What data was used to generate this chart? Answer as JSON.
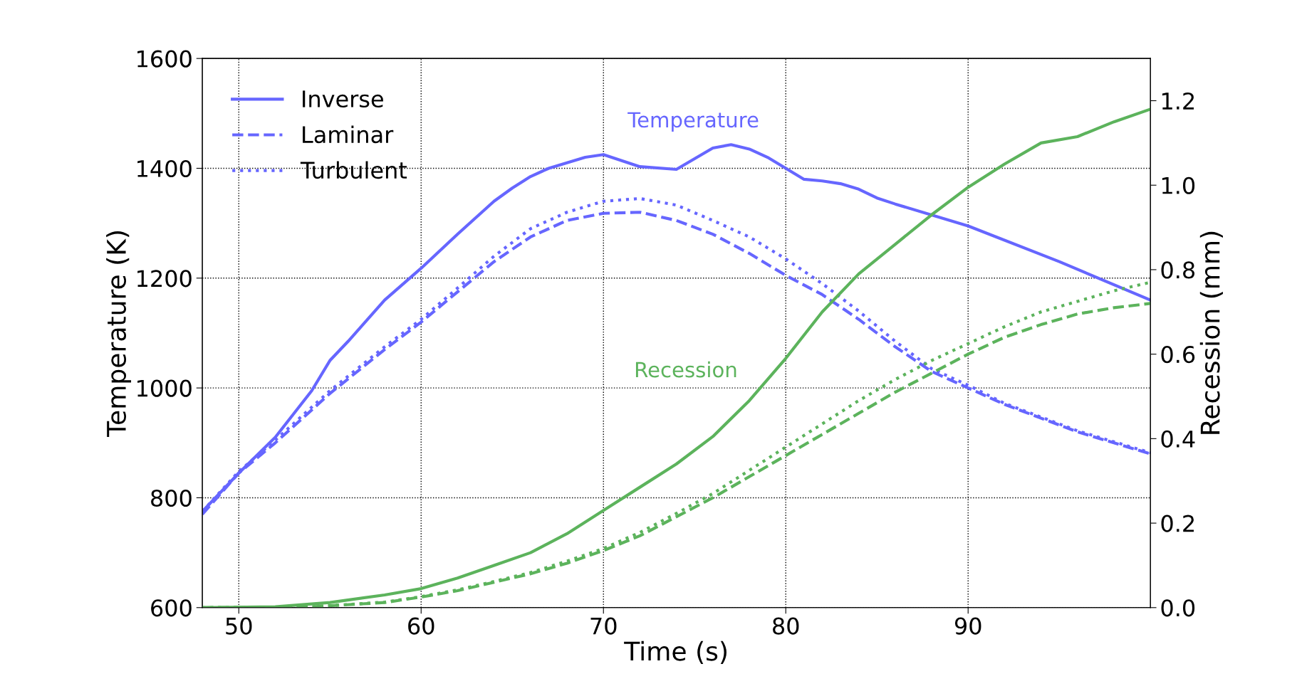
{
  "chart_data": {
    "type": "line",
    "xlabel": "Time (s)",
    "ylabel": "Temperature (K)",
    "y2label": "Recession (mm)",
    "xlim": [
      48,
      100
    ],
    "xticks": [
      50,
      60,
      70,
      80,
      90
    ],
    "ylim": [
      600,
      1600
    ],
    "yticks": [
      600,
      800,
      1000,
      1200,
      1400,
      1600
    ],
    "y2lim": [
      0,
      1.3
    ],
    "y2ticks": [
      {
        "value": 0,
        "label": "0.0"
      },
      0.2,
      0.4,
      0.6,
      0.8,
      {
        "value": 1,
        "label": "1.0"
      },
      1.2
    ],
    "grid": true,
    "legend": "top left",
    "marker": "none",
    "annotations": [
      "Temperature",
      "Recession"
    ],
    "series": [
      {
        "name": "Inverse",
        "color": "#6666ff",
        "line_style": "solid",
        "x": [
          48,
          50,
          52,
          54,
          55,
          56,
          58,
          60,
          62,
          64,
          65,
          66,
          67,
          68,
          69,
          70,
          72,
          74,
          76,
          77,
          78,
          79,
          80,
          81,
          82,
          83,
          84,
          85,
          86,
          90,
          95,
          100
        ],
        "values": [
          775,
          845,
          910,
          995,
          1050,
          1085,
          1160,
          1218,
          1280,
          1340,
          1364,
          1385,
          1400,
          1410,
          1420,
          1425,
          1403,
          1398,
          1437,
          1443,
          1435,
          1420,
          1400,
          1380,
          1377,
          1372,
          1362,
          1346,
          1335,
          1295,
          1230,
          1160
        ]
      },
      {
        "name": "Laminar",
        "color": "#6666ff",
        "line_style": "dashed",
        "x": [
          48,
          50,
          52,
          55,
          58,
          60,
          62,
          64,
          66,
          68,
          70,
          72,
          74,
          76,
          78,
          80,
          82,
          84,
          86,
          88,
          90,
          92,
          94,
          96,
          98,
          100
        ],
        "values": [
          770,
          845,
          900,
          990,
          1070,
          1120,
          1175,
          1230,
          1275,
          1305,
          1318,
          1320,
          1305,
          1280,
          1245,
          1205,
          1170,
          1125,
          1075,
          1030,
          1000,
          970,
          945,
          920,
          900,
          880
        ]
      },
      {
        "name": "Turbulent",
        "color": "#6666ff",
        "line_style": "dotted",
        "x": [
          48,
          50,
          52,
          55,
          58,
          60,
          62,
          64,
          66,
          68,
          70,
          72,
          74,
          76,
          78,
          80,
          82,
          84,
          86,
          88,
          90,
          92,
          94,
          96,
          98,
          100
        ],
        "values": [
          775,
          848,
          905,
          995,
          1075,
          1125,
          1182,
          1240,
          1290,
          1320,
          1340,
          1345,
          1333,
          1305,
          1275,
          1235,
          1190,
          1140,
          1085,
          1035,
          1005,
          972,
          947,
          922,
          902,
          882
        ]
      },
      {
        "color": "#5cb35c",
        "line_style": "solid",
        "axis": "y2",
        "x": [
          48,
          52,
          55,
          58,
          60,
          62,
          64,
          66,
          68,
          70,
          72,
          74,
          76,
          78,
          80,
          82,
          84,
          86,
          88,
          90,
          92,
          94,
          96,
          98,
          100
        ],
        "values": [
          0,
          0.002,
          0.012,
          0.03,
          0.045,
          0.07,
          0.1,
          0.13,
          0.175,
          0.23,
          0.285,
          0.34,
          0.405,
          0.49,
          0.59,
          0.7,
          0.79,
          0.86,
          0.93,
          0.995,
          1.05,
          1.1,
          1.115,
          1.15,
          1.18
        ]
      },
      {
        "color": "#5cb35c",
        "line_style": "dashed",
        "axis": "y2",
        "x": [
          48,
          54,
          58,
          60,
          62,
          64,
          66,
          68,
          70,
          72,
          74,
          76,
          78,
          80,
          82,
          84,
          86,
          88,
          90,
          92,
          94,
          96,
          98,
          100
        ],
        "values": [
          0,
          0.002,
          0.012,
          0.025,
          0.04,
          0.06,
          0.08,
          0.105,
          0.135,
          0.17,
          0.215,
          0.26,
          0.31,
          0.36,
          0.41,
          0.46,
          0.51,
          0.555,
          0.6,
          0.64,
          0.67,
          0.695,
          0.71,
          0.72
        ]
      },
      {
        "color": "#5cb35c",
        "line_style": "dotted",
        "axis": "y2",
        "x": [
          48,
          54,
          58,
          60,
          62,
          64,
          66,
          68,
          70,
          72,
          74,
          76,
          78,
          80,
          82,
          84,
          86,
          88,
          90,
          92,
          94,
          96,
          98,
          100
        ],
        "values": [
          0,
          0.002,
          0.013,
          0.026,
          0.042,
          0.062,
          0.083,
          0.11,
          0.14,
          0.178,
          0.223,
          0.27,
          0.325,
          0.38,
          0.435,
          0.49,
          0.54,
          0.585,
          0.625,
          0.665,
          0.7,
          0.725,
          0.75,
          0.77
        ]
      }
    ]
  }
}
